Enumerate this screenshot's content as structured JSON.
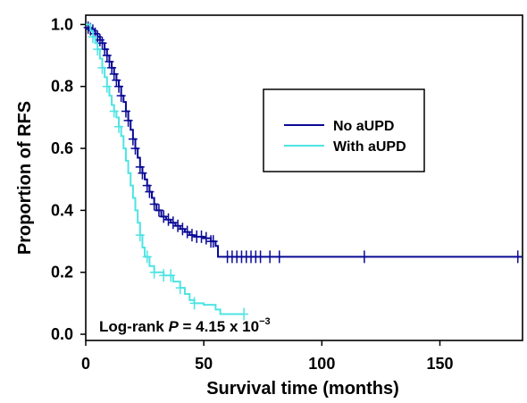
{
  "chart_data": {
    "type": "line",
    "title": "",
    "xlabel": "Survival time (months)",
    "ylabel": "Proportion of RFS",
    "xlim": [
      0,
      185
    ],
    "ylim": [
      -0.02,
      1.03
    ],
    "x_ticks": [
      0,
      50,
      100,
      150
    ],
    "x_tick_labels": [
      "0",
      "50",
      "100",
      "150"
    ],
    "y_ticks": [
      0.0,
      0.2,
      0.4,
      0.6,
      0.8,
      1.0
    ],
    "y_tick_labels": [
      "0.0",
      "0.2",
      "0.4",
      "0.6",
      "0.8",
      "1.0"
    ],
    "grid": false,
    "legend_position": "right-middle",
    "annotation": {
      "prefix": "Log-rank ",
      "p_symbol": "P",
      "equals": " = 4.15 x 10",
      "exponent": "−3"
    },
    "series": [
      {
        "name": "No aUPD",
        "color": "#0a0a96",
        "steps": [
          [
            0,
            1.0
          ],
          [
            1,
            0.99
          ],
          [
            2,
            0.985
          ],
          [
            3,
            0.98
          ],
          [
            4,
            0.97
          ],
          [
            5,
            0.96
          ],
          [
            6,
            0.95
          ],
          [
            7,
            0.94
          ],
          [
            8,
            0.92
          ],
          [
            9,
            0.9
          ],
          [
            10,
            0.88
          ],
          [
            11,
            0.86
          ],
          [
            12,
            0.84
          ],
          [
            13,
            0.82
          ],
          [
            14,
            0.8
          ],
          [
            15,
            0.77
          ],
          [
            16,
            0.75
          ],
          [
            17,
            0.72
          ],
          [
            18,
            0.69
          ],
          [
            19,
            0.66
          ],
          [
            20,
            0.63
          ],
          [
            21,
            0.6
          ],
          [
            22,
            0.57
          ],
          [
            23,
            0.54
          ],
          [
            24,
            0.52
          ],
          [
            25,
            0.5
          ],
          [
            26,
            0.48
          ],
          [
            27,
            0.46
          ],
          [
            28,
            0.44
          ],
          [
            29,
            0.42
          ],
          [
            30,
            0.4
          ],
          [
            32,
            0.38
          ],
          [
            34,
            0.37
          ],
          [
            36,
            0.36
          ],
          [
            38,
            0.35
          ],
          [
            40,
            0.34
          ],
          [
            42,
            0.33
          ],
          [
            44,
            0.32
          ],
          [
            46,
            0.315
          ],
          [
            50,
            0.31
          ],
          [
            53,
            0.3
          ],
          [
            55,
            0.285
          ],
          [
            56,
            0.25
          ],
          [
            185,
            0.25
          ]
        ],
        "censor_x": [
          1,
          2,
          3,
          4,
          5,
          6,
          7,
          8,
          9,
          10,
          11,
          12,
          13,
          14,
          15,
          17,
          18,
          20,
          21,
          23,
          24,
          26,
          27,
          29,
          31,
          33,
          35,
          37,
          39,
          41,
          43,
          45,
          47,
          49,
          51,
          53,
          54,
          60,
          62,
          64,
          66,
          68,
          70,
          72,
          74,
          78,
          82,
          118,
          183
        ]
      },
      {
        "name": "With aUPD",
        "color": "#4fe3e3",
        "steps": [
          [
            0,
            1.0
          ],
          [
            2,
            0.98
          ],
          [
            3,
            0.96
          ],
          [
            4,
            0.94
          ],
          [
            5,
            0.92
          ],
          [
            6,
            0.89
          ],
          [
            7,
            0.86
          ],
          [
            8,
            0.83
          ],
          [
            9,
            0.8
          ],
          [
            10,
            0.77
          ],
          [
            11,
            0.74
          ],
          [
            12,
            0.72
          ],
          [
            13,
            0.7
          ],
          [
            14,
            0.67
          ],
          [
            15,
            0.64
          ],
          [
            16,
            0.6
          ],
          [
            17,
            0.56
          ],
          [
            18,
            0.52
          ],
          [
            19,
            0.48
          ],
          [
            20,
            0.44
          ],
          [
            21,
            0.4
          ],
          [
            22,
            0.36
          ],
          [
            23,
            0.32
          ],
          [
            24,
            0.28
          ],
          [
            25,
            0.25
          ],
          [
            27,
            0.22
          ],
          [
            29,
            0.2
          ],
          [
            33,
            0.19
          ],
          [
            37,
            0.17
          ],
          [
            40,
            0.15
          ],
          [
            42,
            0.13
          ],
          [
            44,
            0.11
          ],
          [
            46,
            0.1
          ],
          [
            50,
            0.095
          ],
          [
            55,
            0.08
          ],
          [
            57,
            0.065
          ],
          [
            67,
            0.065
          ]
        ],
        "censor_x": [
          3,
          5,
          7,
          9,
          12,
          14,
          23,
          26,
          29,
          33,
          36,
          40,
          46,
          67
        ]
      }
    ]
  }
}
